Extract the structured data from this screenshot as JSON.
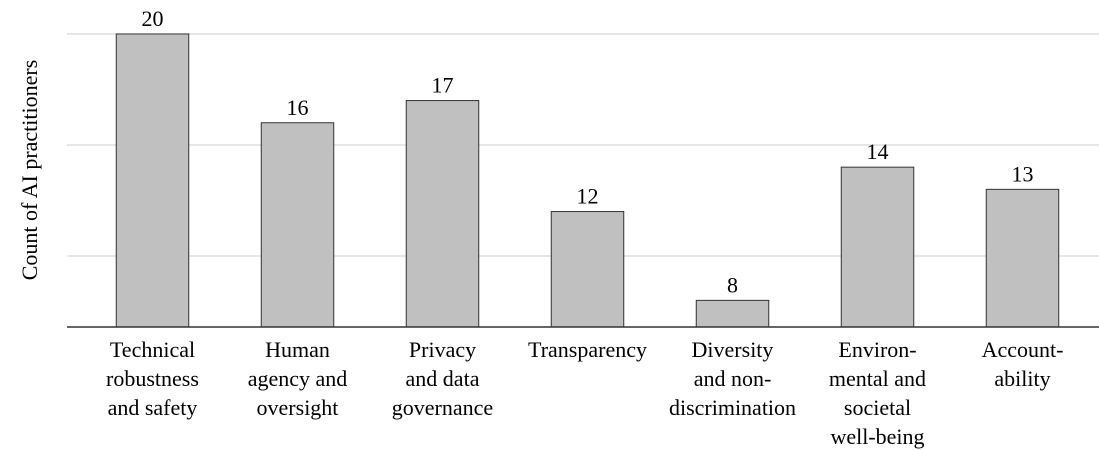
{
  "chart_data": {
    "type": "bar",
    "y_label": "Count of AI practitioners",
    "categories": [
      [
        "Technical",
        "robustness",
        "and safety"
      ],
      [
        "Human",
        "agency and",
        "oversight"
      ],
      [
        "Privacy",
        "and data",
        "governance"
      ],
      [
        "Transparency"
      ],
      [
        "Diversity",
        "and non-",
        "discrimination"
      ],
      [
        "Environ-",
        "mental and",
        "societal",
        "well-being"
      ],
      [
        "Account-",
        "ability"
      ]
    ],
    "values": [
      20,
      16,
      17,
      12,
      8,
      14,
      13
    ],
    "color": "#c0c0c0",
    "ylim": [
      6.8,
      21
    ],
    "yticks": [
      10,
      15,
      20
    ],
    "grid": true
  }
}
